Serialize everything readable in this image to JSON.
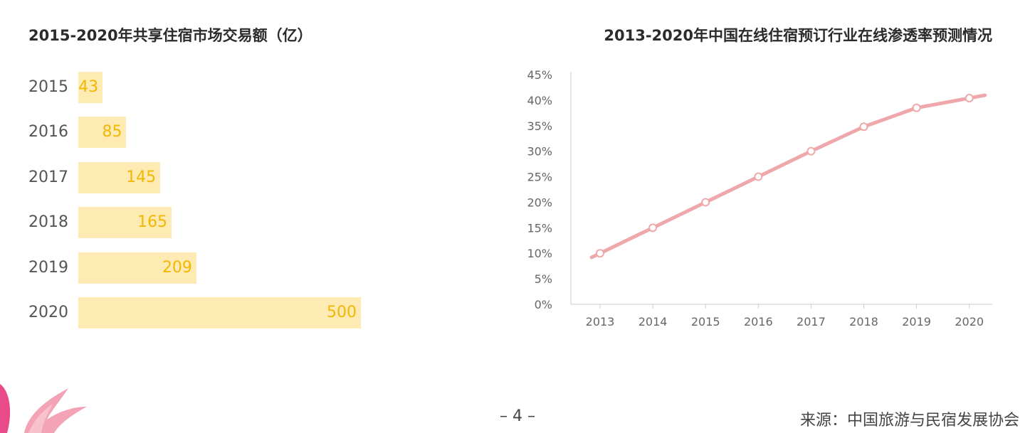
{
  "chart_data": [
    {
      "type": "bar",
      "orientation": "horizontal",
      "title": "2015-2020年共享住宿市场交易额（亿）",
      "categories": [
        "2015",
        "2016",
        "2017",
        "2018",
        "2019",
        "2020"
      ],
      "values": [
        43,
        85,
        145,
        165,
        209,
        500
      ],
      "value_labels": [
        "43",
        "85",
        "145",
        "165",
        "209",
        "500"
      ],
      "bar_color": "#fdebb3",
      "label_color": "#f2b705"
    },
    {
      "type": "line",
      "title": "2013-2020年中国在线住宿预订行业在线渗透率预测情况",
      "x": [
        "2013",
        "2014",
        "2015",
        "2016",
        "2017",
        "2018",
        "2019",
        "2020"
      ],
      "values": [
        10,
        15,
        20,
        25,
        30,
        34.8,
        38.5,
        40.4
      ],
      "ylim": [
        0,
        45
      ],
      "yticks": [
        "0%",
        "5%",
        "10%",
        "15%",
        "20%",
        "25%",
        "30%",
        "35%",
        "40%",
        "45%"
      ],
      "line_color": "#eea8ab",
      "grid": false
    }
  ],
  "footer": {
    "page_number": "– 4 –",
    "source": "来源：中国旅游与民宿发展协会"
  }
}
